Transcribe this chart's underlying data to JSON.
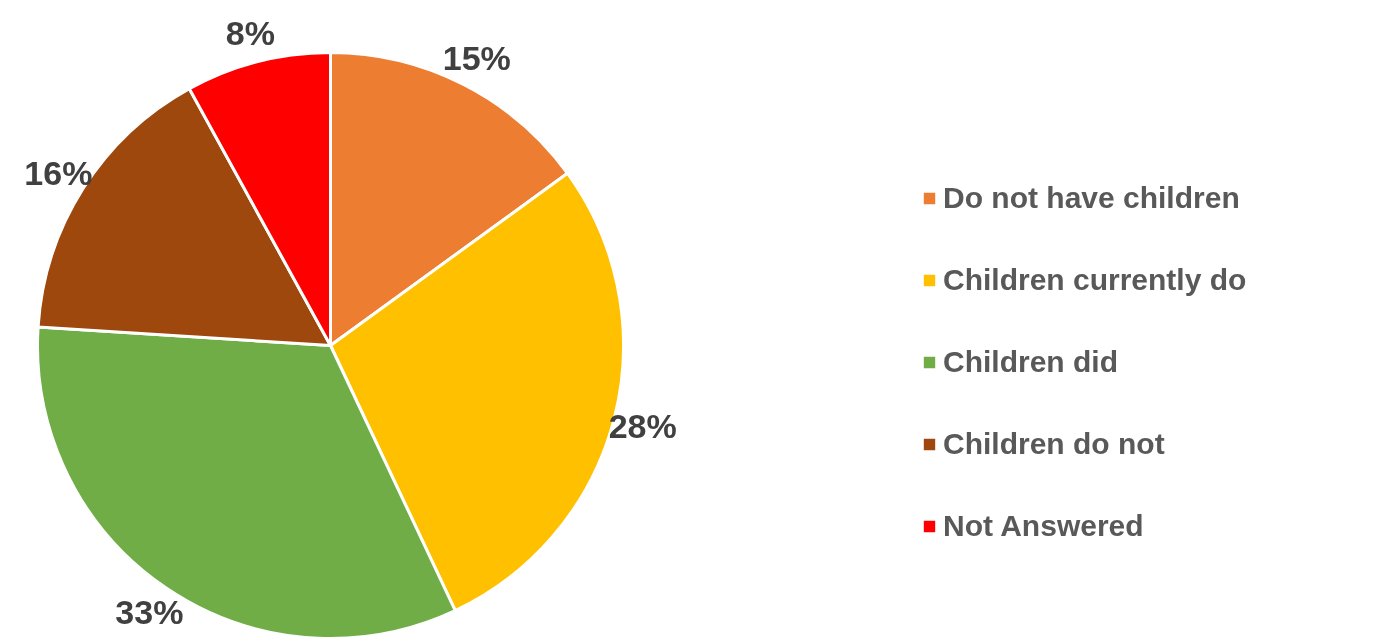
{
  "chart_data": {
    "type": "pie",
    "categories": [
      "Do not have children",
      "Children currently do",
      "Children did",
      "Children do not",
      "Not Answered"
    ],
    "values": [
      15,
      28,
      33,
      16,
      8
    ],
    "colors": [
      "#ed7d31",
      "#ffc000",
      "#70ad47",
      "#9e480e",
      "#ff0000"
    ],
    "value_labels": [
      "15%",
      "28%",
      "33%",
      "16%",
      "8%"
    ],
    "legend": "right"
  }
}
